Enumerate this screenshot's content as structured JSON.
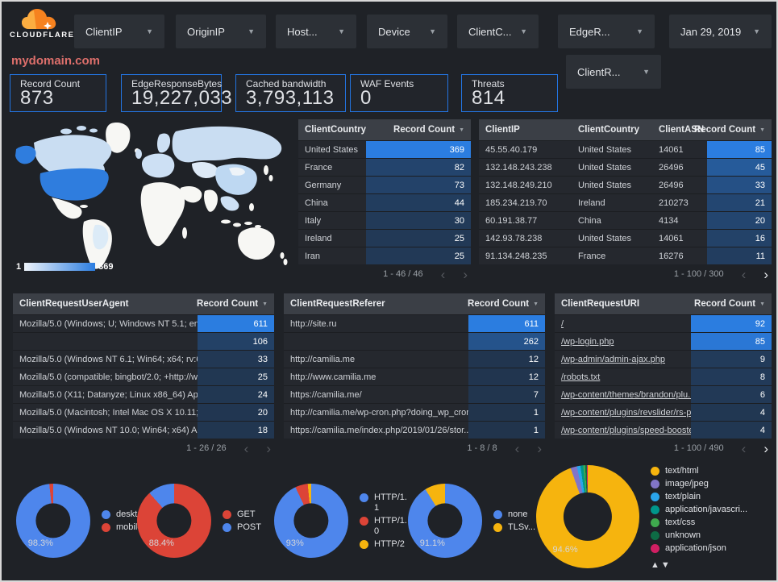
{
  "brand": {
    "name": "CLOUDFLARE"
  },
  "title": "mydomain.com",
  "header": {
    "filters": [
      {
        "label": "ClientIP"
      },
      {
        "label": "OriginIP"
      },
      {
        "label": "Host..."
      },
      {
        "label": "Device"
      },
      {
        "label": "ClientC..."
      },
      {
        "label": "EdgeR..."
      }
    ],
    "filter_row2": {
      "label": "ClientR..."
    },
    "date_filter": {
      "label": "Jan 29, 2019"
    }
  },
  "scorecards": [
    {
      "label": "Record Count",
      "value": "873"
    },
    {
      "label": "EdgeResponseBytes",
      "value": "19,227,033"
    },
    {
      "label": "Cached bandwidth",
      "value": "3,793,113"
    },
    {
      "label": "WAF Events",
      "value": "0"
    },
    {
      "label": "Threats",
      "value": "814"
    }
  ],
  "map": {
    "scale_min": "1",
    "scale_max": "369"
  },
  "ui": {
    "sort_icon": "▼",
    "prev_icon": "‹",
    "next_icon": "›",
    "legend_up": "▲",
    "legend_down": "▼"
  },
  "colors": {
    "accent_blue": "#2374e1",
    "heat_min": "#21344c",
    "heat_max": "#2b7de0",
    "blue": "#4e86ec",
    "red": "#dc4437",
    "yellow": "#f6b40e",
    "purple": "#8175c7",
    "lightblue": "#2aa4ea",
    "teal": "#00968b",
    "green": "#3fa94e",
    "darkgreen": "#0e6b45",
    "magenta": "#d01f63"
  },
  "tables": {
    "client_country": {
      "columns": [
        "ClientCountry",
        "Record Count"
      ],
      "rows": [
        [
          "United States",
          369
        ],
        [
          "France",
          82
        ],
        [
          "Germany",
          73
        ],
        [
          "China",
          44
        ],
        [
          "Italy",
          30
        ],
        [
          "Ireland",
          25
        ],
        [
          "Iran",
          25
        ]
      ],
      "max": 369,
      "pagination": {
        "label": "1 - 46 / 46",
        "prev_enabled": false,
        "next_enabled": false
      }
    },
    "client_ip": {
      "columns": [
        "ClientIP",
        "ClientCountry",
        "ClientASN",
        "Record Count"
      ],
      "rows": [
        [
          "45.55.40.179",
          "United States",
          "14061",
          85
        ],
        [
          "132.148.243.238",
          "United States",
          "26496",
          45
        ],
        [
          "132.148.249.210",
          "United States",
          "26496",
          33
        ],
        [
          "185.234.219.70",
          "Ireland",
          "210273",
          21
        ],
        [
          "60.191.38.77",
          "China",
          "4134",
          20
        ],
        [
          "142.93.78.238",
          "United States",
          "14061",
          16
        ],
        [
          "91.134.248.235",
          "France",
          "16276",
          11
        ]
      ],
      "max": 85,
      "pagination": {
        "label": "1 - 100 / 300",
        "prev_enabled": false,
        "next_enabled": true
      }
    },
    "user_agent": {
      "columns": [
        "ClientRequestUserAgent",
        "Record Count"
      ],
      "rows": [
        [
          "Mozilla/5.0 (Windows; U; Windows NT 5.1; en-U...",
          611
        ],
        [
          "",
          106
        ],
        [
          "Mozilla/5.0 (Windows NT 6.1; Win64; x64; rv:64...",
          33
        ],
        [
          "Mozilla/5.0 (compatible; bingbot/2.0; +http://w...",
          25
        ],
        [
          "Mozilla/5.0 (X11; Datanyze; Linux x86_64) Appl...",
          24
        ],
        [
          "Mozilla/5.0 (Macintosh; Intel Mac OS X 10.11; r...",
          20
        ],
        [
          "Mozilla/5.0 (Windows NT 10.0; Win64; x64) App...",
          18
        ]
      ],
      "max": 611,
      "pagination": {
        "label": "1 - 26 / 26",
        "prev_enabled": false,
        "next_enabled": false
      }
    },
    "referer": {
      "columns": [
        "ClientRequestReferer",
        "Record Count"
      ],
      "rows": [
        [
          "http://site.ru",
          611
        ],
        [
          "",
          262
        ],
        [
          "http://camilia.me",
          12
        ],
        [
          "http://www.camilia.me",
          12
        ],
        [
          "https://camilia.me/",
          7
        ],
        [
          "http://camilia.me/wp-cron.php?doing_wp_cron...",
          1
        ],
        [
          "https://camilia.me/index.php/2019/01/26/stor...",
          1
        ]
      ],
      "max": 611,
      "pagination": {
        "label": "1 - 8 / 8",
        "prev_enabled": false,
        "next_enabled": false
      }
    },
    "uri": {
      "columns": [
        "ClientRequestURI",
        "Record Count"
      ],
      "link_first_col": true,
      "rows": [
        [
          "/",
          92
        ],
        [
          "/wp-login.php",
          85
        ],
        [
          "/wp-admin/admin-ajax.php",
          9
        ],
        [
          "/robots.txt",
          8
        ],
        [
          "/wp-content/themes/brandon/plu...",
          6
        ],
        [
          "/wp-content/plugins/revslider/rs-p...",
          4
        ],
        [
          "/wp-content/plugins/speed-booste...",
          4
        ]
      ],
      "max": 92,
      "pagination": {
        "label": "1 - 100 / 490",
        "prev_enabled": false,
        "next_enabled": true
      }
    }
  },
  "donuts": [
    {
      "name": "device-type",
      "label_pct": "98.3%",
      "slices": [
        {
          "name": "deskt...",
          "color": "#4e86ec",
          "value": 98.3
        },
        {
          "name": "mobile",
          "color": "#dc4437",
          "value": 1.7
        }
      ]
    },
    {
      "name": "http-method",
      "label_pct": "88.4%",
      "slices": [
        {
          "name": "GET",
          "color": "#dc4437",
          "value": 88.4
        },
        {
          "name": "POST",
          "color": "#4e86ec",
          "value": 11.6
        }
      ]
    },
    {
      "name": "http-protocol",
      "label_pct": "93%",
      "slices": [
        {
          "name": "HTTP/1.1",
          "color": "#4e86ec",
          "value": 93
        },
        {
          "name": "HTTP/1.0",
          "color": "#dc4437",
          "value": 5.5
        },
        {
          "name": "HTTP/2",
          "color": "#f6b40e",
          "value": 1.5
        }
      ]
    },
    {
      "name": "tls-version",
      "label_pct": "91.1%",
      "slices": [
        {
          "name": "none",
          "color": "#4e86ec",
          "value": 91.1
        },
        {
          "name": "TLSv...",
          "color": "#f6b40e",
          "value": 8.9
        }
      ]
    },
    {
      "name": "content-type",
      "label_pct": "94.6%",
      "has_scroll_arrows": true,
      "slices": [
        {
          "name": "text/html",
          "color": "#f6b40e",
          "value": 94.6
        },
        {
          "name": "image/jpeg",
          "color": "#8175c7",
          "value": 2.0
        },
        {
          "name": "text/plain",
          "color": "#2aa4ea",
          "value": 1.1
        },
        {
          "name": "application/javascri...",
          "color": "#00968b",
          "value": 0.9
        },
        {
          "name": "text/css",
          "color": "#3fa94e",
          "value": 0.6
        },
        {
          "name": "unknown",
          "color": "#0e6b45",
          "value": 0.5
        },
        {
          "name": "application/json",
          "color": "#d01f63",
          "value": 0.3
        }
      ]
    }
  ]
}
